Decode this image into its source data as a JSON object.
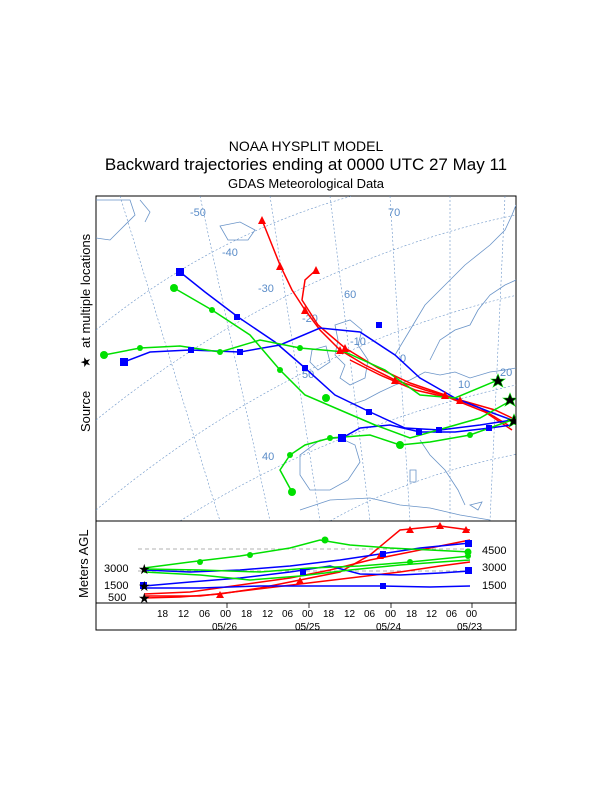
{
  "header": {
    "model": "NOAA HYSPLIT MODEL",
    "subtitle": "Backward trajectories ending at 0000 UTC 27 May 11",
    "data_source": "GDAS Meteorological Data"
  },
  "map": {
    "side_label_source": "Source",
    "side_label_rest": "at multiple locations",
    "grid_labels": [
      "-50",
      "-40",
      "-30",
      "-20",
      "-10",
      "0",
      "70",
      "60",
      "50",
      "40",
      "10",
      "20"
    ],
    "colors": {
      "land_outline": "#6a94c8",
      "grid": "#6a94c8",
      "red": "#ff0000",
      "blue": "#0000ff",
      "green": "#00e000"
    }
  },
  "profile": {
    "ylabel": "Meters AGL",
    "start_heights_left": [
      "3000",
      "1500",
      "500"
    ],
    "right_heights": [
      "4500",
      "3000",
      "1500"
    ],
    "x_hours": [
      "18",
      "12",
      "06",
      "00",
      "18",
      "12",
      "06",
      "00",
      "18",
      "12",
      "06",
      "00",
      "18",
      "12",
      "06",
      "00"
    ],
    "x_dates": [
      "05/26",
      "05/25",
      "05/24",
      "05/23"
    ]
  }
}
